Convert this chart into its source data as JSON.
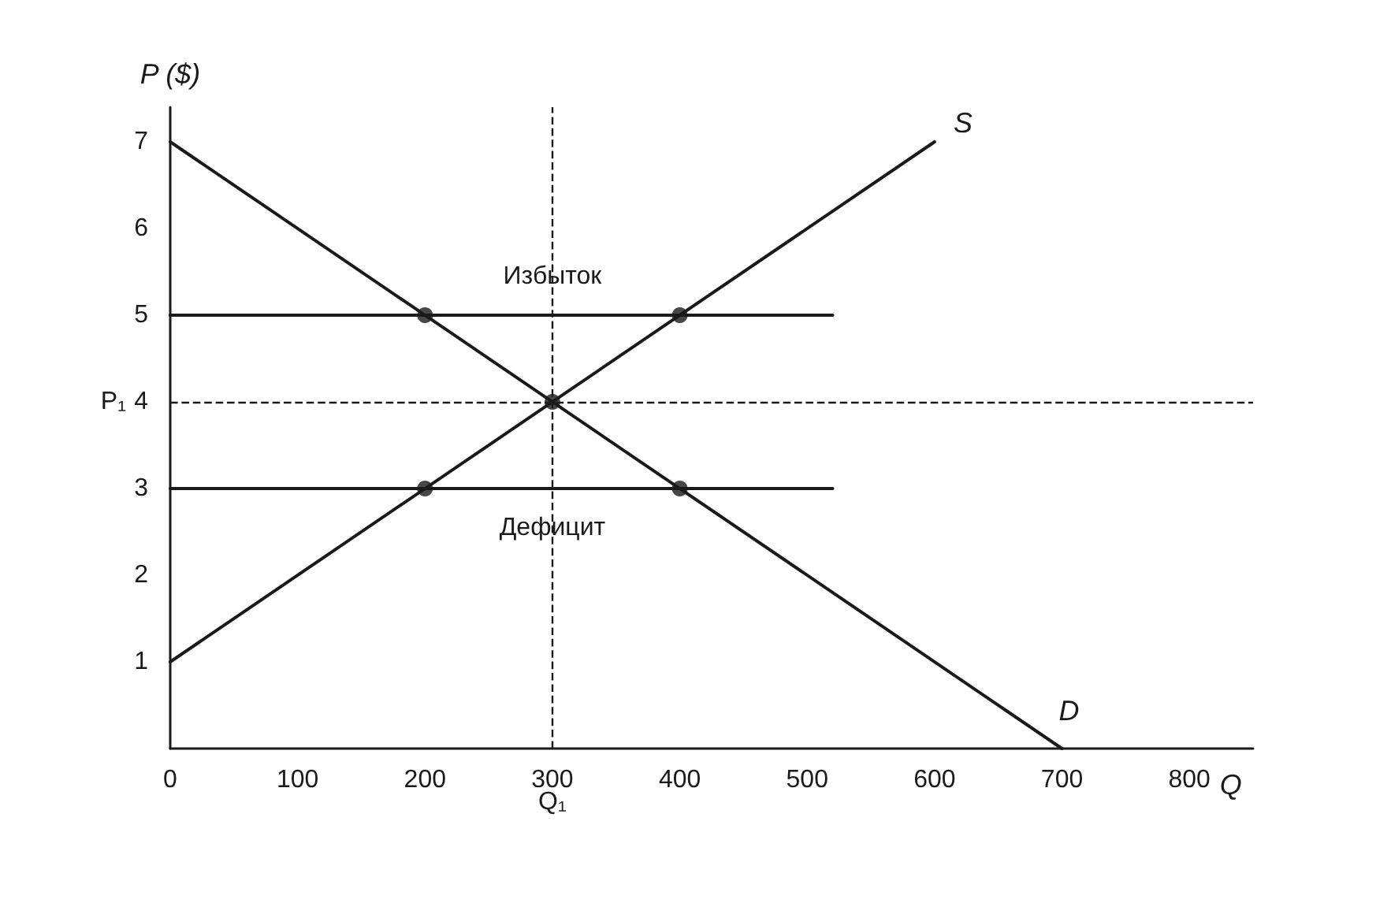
{
  "chart_data": {
    "type": "line",
    "xlabel": "Q",
    "ylabel": "P ($)",
    "xlim": [
      0,
      850
    ],
    "ylim": [
      0,
      7.4
    ],
    "xticks": [
      0,
      100,
      200,
      300,
      400,
      500,
      600,
      700,
      800
    ],
    "yticks": [
      1,
      2,
      3,
      4,
      5,
      6,
      7
    ],
    "grid": false,
    "legend": false,
    "series": [
      {
        "name": "D",
        "color": "#1a1a1a",
        "x": [
          0,
          700
        ],
        "values": [
          7,
          0
        ],
        "marker": "none"
      },
      {
        "name": "S",
        "color": "#1a1a1a",
        "x": [
          0,
          600
        ],
        "values": [
          1,
          7
        ],
        "marker": "none"
      },
      {
        "color": "#1a1a1a",
        "x": [
          0,
          520
        ],
        "values": [
          5,
          5
        ],
        "marker": "none"
      },
      {
        "color": "#1a1a1a",
        "x": [
          0,
          520
        ],
        "values": [
          3,
          3
        ],
        "marker": "none"
      },
      {
        "type": "scatter",
        "color": "#1a1a1a",
        "x": [
          200,
          400,
          300,
          200,
          400
        ],
        "values": [
          5,
          5,
          4,
          3,
          3
        ],
        "marker": "circle"
      }
    ],
    "ref_lines": [
      {
        "axis": "y",
        "value": 4,
        "label": "P₁",
        "line_style": "dashed"
      },
      {
        "axis": "x",
        "value": 300,
        "label": "Q₁",
        "line_style": "dashed"
      }
    ],
    "annotations": [
      {
        "text": "Избыток",
        "x": 300,
        "y": 5.45
      },
      {
        "text": "Дефицит",
        "x": 300,
        "y": 2.55
      }
    ]
  }
}
